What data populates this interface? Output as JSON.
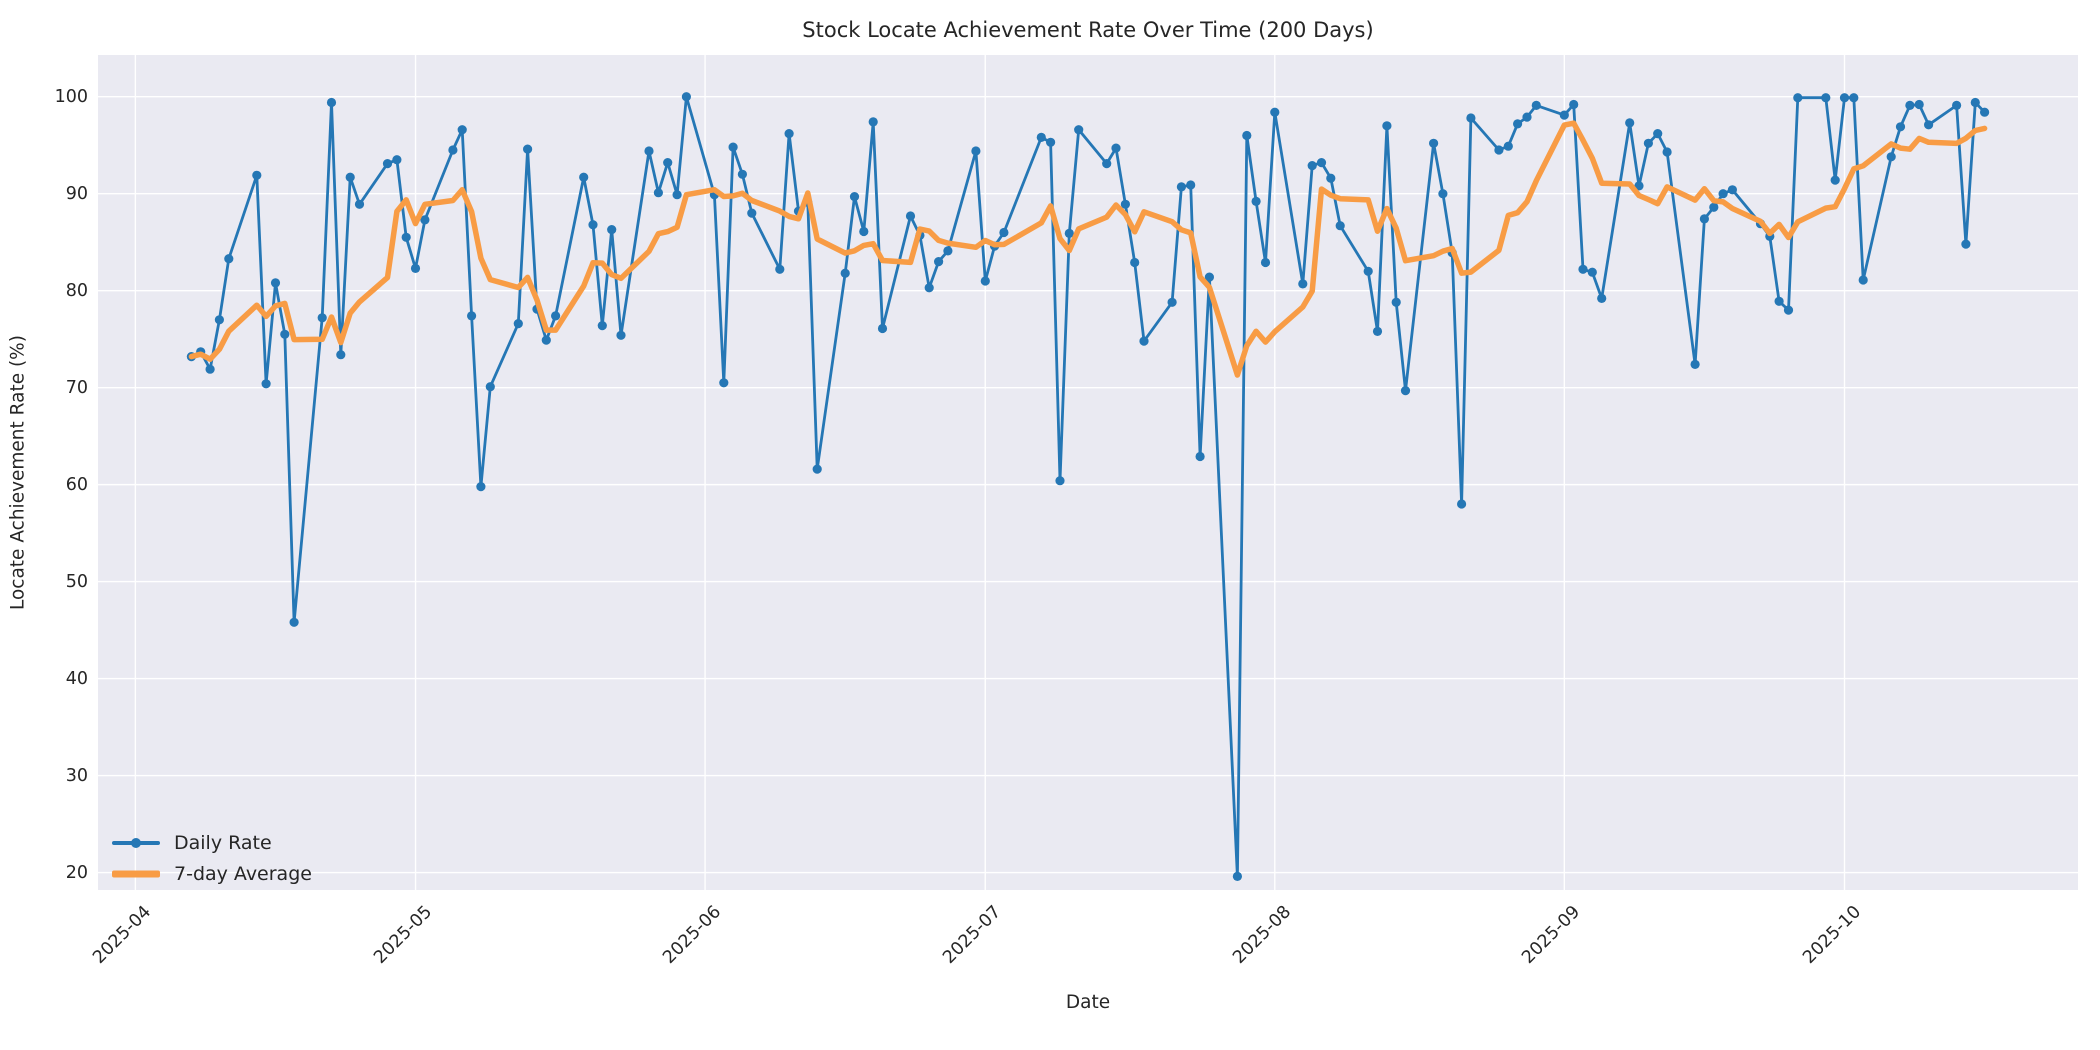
{
  "figure": {
    "title": "Stock Locate Achievement Rate Over Time (200 Days)",
    "xlabel": "Date",
    "ylabel": "Locate Achievement Rate (%)"
  },
  "legend": {
    "daily_label": "Daily Rate",
    "avg_label": "7-day Average"
  },
  "colors": {
    "daily_line": "#2577b5",
    "avg_line": "#f89c45",
    "plot_background": "#eaeaf2",
    "gridline": "#ffffff",
    "figure_background": "#ffffff",
    "text": "#262626"
  },
  "chart_data": {
    "type": "line",
    "title": "Stock Locate Achievement Rate Over Time (200 Days)",
    "xlabel": "Date",
    "ylabel": "Locate Achievement Rate (%)",
    "grid": true,
    "legend_position": "lower left",
    "ylim": [
      18.2,
      104.3
    ],
    "xlim_dates": [
      "2025-03-28",
      "2025-10-26"
    ],
    "y_ticks": [
      20,
      30,
      40,
      50,
      60,
      70,
      80,
      90,
      100
    ],
    "x_ticks": [
      {
        "label": "2025-04",
        "date": "2025-04-01"
      },
      {
        "label": "2025-05",
        "date": "2025-05-01"
      },
      {
        "label": "2025-06",
        "date": "2025-06-01"
      },
      {
        "label": "2025-07",
        "date": "2025-07-01"
      },
      {
        "label": "2025-08",
        "date": "2025-08-01"
      },
      {
        "label": "2025-09",
        "date": "2025-09-01"
      },
      {
        "label": "2025-10",
        "date": "2025-10-01"
      }
    ],
    "series": [
      {
        "name": "Daily Rate",
        "style": "line+markers",
        "dates": [
          "2025-04-07",
          "2025-04-08",
          "2025-04-09",
          "2025-04-10",
          "2025-04-11",
          "2025-04-14",
          "2025-04-15",
          "2025-04-16",
          "2025-04-17",
          "2025-04-18",
          "2025-04-21",
          "2025-04-22",
          "2025-04-23",
          "2025-04-24",
          "2025-04-25",
          "2025-04-28",
          "2025-04-29",
          "2025-04-30",
          "2025-05-01",
          "2025-05-02",
          "2025-05-05",
          "2025-05-06",
          "2025-05-07",
          "2025-05-08",
          "2025-05-09",
          "2025-05-12",
          "2025-05-13",
          "2025-05-14",
          "2025-05-15",
          "2025-05-16",
          "2025-05-19",
          "2025-05-20",
          "2025-05-21",
          "2025-05-22",
          "2025-05-23",
          "2025-05-26",
          "2025-05-27",
          "2025-05-28",
          "2025-05-29",
          "2025-05-30",
          "2025-06-02",
          "2025-06-03",
          "2025-06-04",
          "2025-06-05",
          "2025-06-06",
          "2025-06-09",
          "2025-06-10",
          "2025-06-11",
          "2025-06-12",
          "2025-06-13",
          "2025-06-16",
          "2025-06-17",
          "2025-06-18",
          "2025-06-19",
          "2025-06-20",
          "2025-06-23",
          "2025-06-24",
          "2025-06-25",
          "2025-06-26",
          "2025-06-27",
          "2025-06-30",
          "2025-07-01",
          "2025-07-02",
          "2025-07-03",
          "2025-07-07",
          "2025-07-08",
          "2025-07-09",
          "2025-07-10",
          "2025-07-11",
          "2025-07-14",
          "2025-07-15",
          "2025-07-16",
          "2025-07-17",
          "2025-07-18",
          "2025-07-21",
          "2025-07-22",
          "2025-07-23",
          "2025-07-24",
          "2025-07-25",
          "2025-07-28",
          "2025-07-29",
          "2025-07-30",
          "2025-07-31",
          "2025-08-01",
          "2025-08-04",
          "2025-08-05",
          "2025-08-06",
          "2025-08-07",
          "2025-08-08",
          "2025-08-11",
          "2025-08-12",
          "2025-08-13",
          "2025-08-14",
          "2025-08-15",
          "2025-08-18",
          "2025-08-19",
          "2025-08-20",
          "2025-08-21",
          "2025-08-22",
          "2025-08-25",
          "2025-08-26",
          "2025-08-27",
          "2025-08-28",
          "2025-08-29",
          "2025-09-01",
          "2025-09-02",
          "2025-09-03",
          "2025-09-04",
          "2025-09-05",
          "2025-09-08",
          "2025-09-09",
          "2025-09-10",
          "2025-09-11",
          "2025-09-12",
          "2025-09-15",
          "2025-09-16",
          "2025-09-17",
          "2025-09-18",
          "2025-09-19",
          "2025-09-22",
          "2025-09-23",
          "2025-09-24",
          "2025-09-25",
          "2025-09-26",
          "2025-09-29",
          "2025-09-30",
          "2025-10-01",
          "2025-10-02",
          "2025-10-03",
          "2025-10-06",
          "2025-10-07",
          "2025-10-08",
          "2025-10-09",
          "2025-10-10",
          "2025-10-13",
          "2025-10-14",
          "2025-10-15",
          "2025-10-16"
        ],
        "values": [
          73.2,
          73.7,
          71.9,
          77.0,
          83.3,
          91.9,
          70.4,
          80.8,
          75.5,
          45.8,
          77.2,
          99.4,
          73.4,
          91.7,
          88.9,
          93.1,
          93.5,
          85.5,
          82.3,
          87.3,
          94.5,
          96.6,
          77.4,
          59.8,
          70.1,
          76.6,
          94.6,
          78.1,
          74.9,
          77.4,
          91.7,
          86.8,
          76.4,
          86.3,
          75.4,
          94.4,
          90.1,
          93.2,
          89.9,
          100.0,
          89.9,
          70.5,
          94.8,
          92.0,
          88.0,
          82.2,
          96.2,
          88.2,
          89.1,
          61.6,
          81.8,
          89.7,
          86.1,
          97.4,
          76.1,
          87.7,
          85.7,
          80.3,
          83.0,
          84.1,
          94.4,
          81.0,
          84.6,
          86.0,
          95.8,
          95.3,
          60.4,
          85.9,
          96.6,
          93.1,
          94.7,
          88.9,
          82.9,
          74.8,
          78.8,
          90.7,
          90.9,
          62.9,
          81.4,
          19.6,
          96.0,
          89.2,
          82.9,
          98.4,
          80.7,
          92.9,
          93.2,
          91.6,
          86.7,
          82.0,
          75.8,
          97.0,
          78.8,
          69.7,
          95.2,
          90.0,
          83.9,
          58.0,
          97.8,
          94.5,
          94.9,
          97.2,
          97.9,
          99.1,
          98.1,
          99.2,
          82.2,
          81.9,
          79.2,
          97.3,
          90.8,
          95.2,
          96.2,
          94.3,
          72.4,
          87.4,
          88.6,
          90.0,
          90.4,
          86.9,
          85.6,
          78.9,
          78.0,
          99.9,
          99.9,
          91.4,
          99.9,
          99.9,
          81.1,
          93.8,
          96.9,
          99.1,
          99.2,
          97.1,
          99.1,
          84.8,
          99.4,
          98.4
        ]
      },
      {
        "name": "7-day Average",
        "style": "line",
        "derived": "rolling mean of Daily Rate, window 7, min_periods 1",
        "window": 7
      }
    ]
  }
}
